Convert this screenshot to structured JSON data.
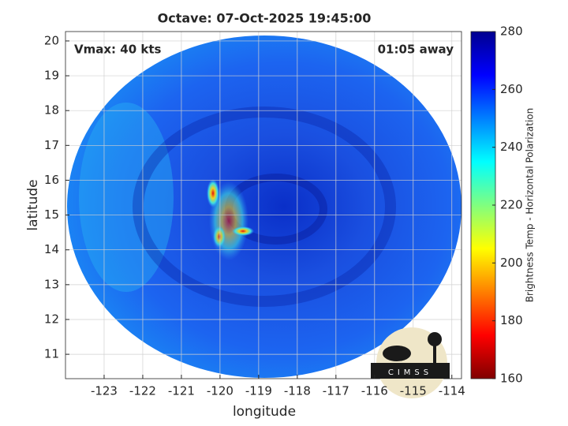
{
  "chart_data": {
    "type": "map",
    "title": "Octave: 07-Oct-2025 19:45:00",
    "xlabel": "longitude",
    "ylabel": "latitude",
    "annotations": [
      "Vmax: 40 kts",
      "01:05 away"
    ],
    "logo": "CIMSS",
    "xlim": [
      -124,
      -113.75
    ],
    "xticks": [
      -123,
      -122,
      -121,
      -120,
      -119,
      -118,
      -117,
      -116,
      -115,
      -114
    ],
    "ylim": [
      10.3,
      20.27
    ],
    "yticks": [
      11,
      12,
      13,
      14,
      15,
      16,
      17,
      18,
      19,
      20
    ],
    "grid": true,
    "colorbar": {
      "label": "Brightness Temp - Horizontal Polarization",
      "colormap": "jet",
      "lim": [
        160,
        280
      ],
      "ticks": [
        160,
        180,
        200,
        220,
        240,
        260,
        280
      ]
    }
  }
}
